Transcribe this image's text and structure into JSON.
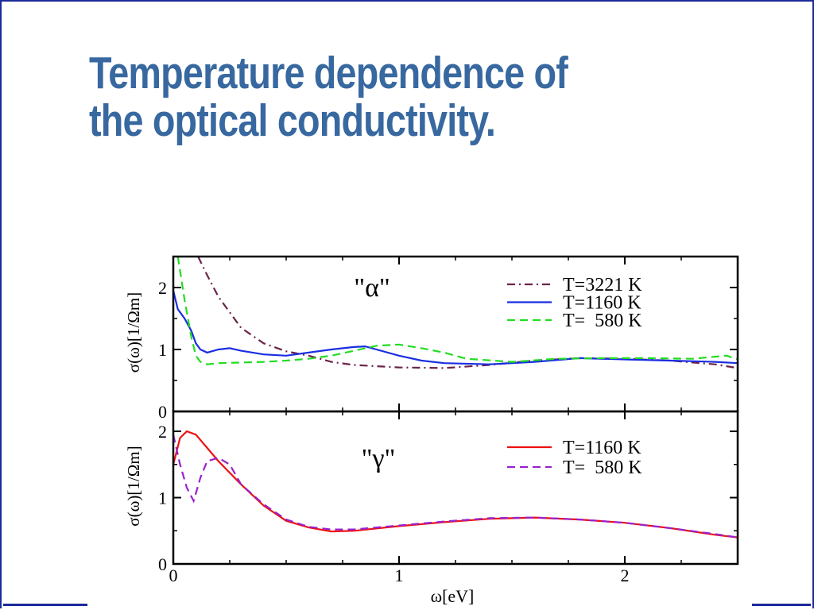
{
  "slide": {
    "title_line1": "Temperature dependence of",
    "title_line2": "the optical conductivity.",
    "accent": "#3868a0",
    "frame_color": "#1c2a9a"
  },
  "chart_data": [
    {
      "type": "line",
      "panel_label": "\"α\"",
      "ylabel": "σ(ω)[1/Ωm]",
      "xlabel": "",
      "xlim": [
        0,
        2.5
      ],
      "ylim": [
        0,
        2.5
      ],
      "yticks": [
        0,
        1,
        2
      ],
      "xticks": [
        0,
        1,
        2
      ],
      "legend_position": "top-right",
      "grid": false,
      "series": [
        {
          "name": "T=3221 K",
          "style": "dash-dot",
          "color": "#6b2448",
          "x": [
            0.11,
            0.15,
            0.2,
            0.3,
            0.4,
            0.5,
            0.6,
            0.7,
            0.8,
            1.0,
            1.2,
            1.4,
            1.6,
            1.8,
            2.0,
            2.2,
            2.4,
            2.5
          ],
          "y": [
            2.5,
            2.2,
            1.85,
            1.35,
            1.1,
            0.97,
            0.9,
            0.8,
            0.75,
            0.71,
            0.7,
            0.75,
            0.82,
            0.86,
            0.85,
            0.82,
            0.76,
            0.7
          ]
        },
        {
          "name": "T=1160 K",
          "style": "solid",
          "color": "#1a2ee0",
          "x": [
            0.0,
            0.02,
            0.05,
            0.08,
            0.1,
            0.12,
            0.15,
            0.2,
            0.25,
            0.3,
            0.4,
            0.5,
            0.6,
            0.7,
            0.8,
            0.85,
            0.9,
            1.0,
            1.1,
            1.2,
            1.4,
            1.6,
            1.8,
            2.0,
            2.2,
            2.4,
            2.5
          ],
          "y": [
            1.95,
            1.65,
            1.5,
            1.3,
            1.1,
            1.0,
            0.95,
            1.0,
            1.02,
            0.98,
            0.92,
            0.9,
            0.95,
            1.0,
            1.04,
            1.05,
            1.0,
            0.9,
            0.82,
            0.78,
            0.76,
            0.8,
            0.86,
            0.84,
            0.82,
            0.8,
            0.78
          ]
        },
        {
          "name": "T=  580 K",
          "style": "dashed",
          "color": "#22dd22",
          "x": [
            0.02,
            0.05,
            0.08,
            0.1,
            0.12,
            0.15,
            0.2,
            0.3,
            0.4,
            0.5,
            0.6,
            0.7,
            0.8,
            0.9,
            1.0,
            1.1,
            1.2,
            1.3,
            1.5,
            1.7,
            1.9,
            2.1,
            2.3,
            2.45,
            2.5
          ],
          "y": [
            2.5,
            1.8,
            1.2,
            0.9,
            0.8,
            0.76,
            0.78,
            0.79,
            0.8,
            0.82,
            0.85,
            0.9,
            0.98,
            1.06,
            1.08,
            1.02,
            0.95,
            0.85,
            0.8,
            0.85,
            0.86,
            0.86,
            0.85,
            0.9,
            0.84
          ]
        }
      ]
    },
    {
      "type": "line",
      "panel_label": "\"γ\"",
      "ylabel": "σ(ω)[1/Ωm]",
      "xlabel": "ω[eV]",
      "xlim": [
        0,
        2.5
      ],
      "ylim": [
        0,
        2.3
      ],
      "yticks": [
        0,
        1,
        2
      ],
      "xticks": [
        0,
        1,
        2
      ],
      "legend_position": "top-right",
      "grid": false,
      "series": [
        {
          "name": "T=1160 K",
          "style": "solid",
          "color": "#ee1111",
          "x": [
            0.0,
            0.03,
            0.06,
            0.1,
            0.15,
            0.2,
            0.3,
            0.4,
            0.5,
            0.6,
            0.7,
            0.8,
            1.0,
            1.2,
            1.4,
            1.6,
            1.8,
            2.0,
            2.2,
            2.4,
            2.5
          ],
          "y": [
            1.5,
            1.9,
            2.0,
            1.95,
            1.75,
            1.55,
            1.2,
            0.88,
            0.65,
            0.55,
            0.49,
            0.5,
            0.57,
            0.63,
            0.68,
            0.7,
            0.67,
            0.62,
            0.54,
            0.44,
            0.4
          ]
        },
        {
          "name": "T=  580 K",
          "style": "dashed",
          "color": "#9922cc",
          "x": [
            0.0,
            0.03,
            0.06,
            0.09,
            0.12,
            0.15,
            0.2,
            0.25,
            0.3,
            0.4,
            0.5,
            0.6,
            0.7,
            0.8,
            1.0,
            1.2,
            1.4,
            1.6,
            1.8,
            2.0,
            2.2,
            2.4,
            2.5
          ],
          "y": [
            1.95,
            1.5,
            1.15,
            0.95,
            1.3,
            1.55,
            1.6,
            1.5,
            1.2,
            0.9,
            0.67,
            0.56,
            0.52,
            0.52,
            0.58,
            0.64,
            0.69,
            0.7,
            0.67,
            0.62,
            0.54,
            0.45,
            0.4
          ]
        }
      ]
    }
  ]
}
